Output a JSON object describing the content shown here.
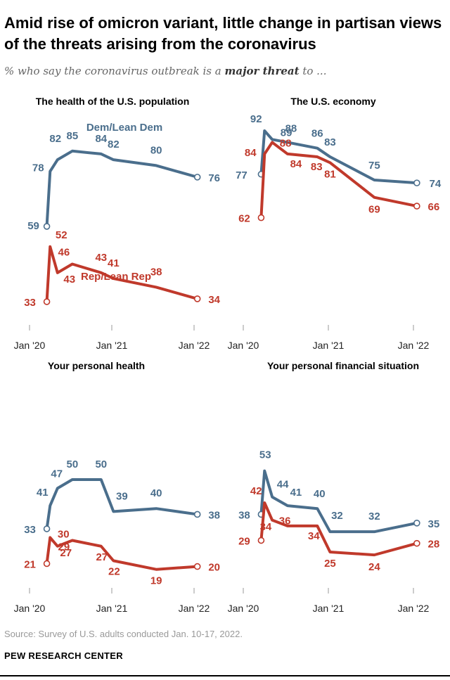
{
  "title": "Amid rise of omicron variant, little change in partisan views of the threats arising from the coronavirus",
  "subtitle_prefix": "% who say the coronavirus outbreak is a ",
  "subtitle_emphasis": "major threat",
  "subtitle_suffix": " to ...",
  "source": "Source: Survey of U.S. adults conducted Jan. 10-17, 2022.",
  "organization": "PEW RESEARCH CENTER",
  "colors": {
    "dem": "#4a6e8c",
    "rep": "#c0392b"
  },
  "chart_data": [
    {
      "type": "line",
      "title": "The health of the U.S. population",
      "x_tick_labels": [
        "Jan '20",
        "Jan '21",
        "Jan '22"
      ],
      "xlim": [
        "2020-01",
        "2022-01"
      ],
      "ylim": [
        0,
        100
      ],
      "series": [
        {
          "name": "Dem/Lean Dem",
          "x": [
            2020.21,
            2020.25,
            2020.34,
            2020.52,
            2020.87,
            2021.02,
            2021.54,
            2022.04
          ],
          "values": [
            59,
            78,
            82,
            85,
            84,
            82,
            80,
            76
          ],
          "labeled": [
            true,
            true,
            true,
            true,
            true,
            true,
            true,
            true
          ]
        },
        {
          "name": "Rep/Lean Rep",
          "x": [
            2020.21,
            2020.25,
            2020.34,
            2020.52,
            2020.87,
            2021.02,
            2021.54,
            2022.04
          ],
          "values": [
            33,
            52,
            43,
            46,
            43,
            41,
            38,
            34
          ],
          "labeled": [
            true,
            true,
            true,
            true,
            true,
            true,
            true,
            true
          ]
        }
      ]
    },
    {
      "type": "line",
      "title": "The U.S. economy",
      "x_tick_labels": [
        "Jan '20",
        "Jan '21",
        "Jan '22"
      ],
      "xlim": [
        "2020-01",
        "2022-01"
      ],
      "ylim": [
        0,
        100
      ],
      "series": [
        {
          "name": "Dem/Lean Dem",
          "x": [
            2020.21,
            2020.25,
            2020.34,
            2020.52,
            2020.87,
            2021.02,
            2021.54,
            2022.04
          ],
          "values": [
            77,
            92,
            89,
            88,
            86,
            83,
            75,
            74
          ],
          "labeled": [
            true,
            true,
            true,
            true,
            true,
            true,
            true,
            true
          ]
        },
        {
          "name": "Rep/Lean Rep",
          "x": [
            2020.21,
            2020.25,
            2020.34,
            2020.52,
            2020.87,
            2021.02,
            2021.54,
            2022.04
          ],
          "values": [
            62,
            84,
            88,
            84,
            83,
            81,
            69,
            66
          ],
          "labeled": [
            true,
            true,
            true,
            true,
            true,
            true,
            true,
            true
          ]
        }
      ]
    },
    {
      "type": "line",
      "title": "Your personal health",
      "x_tick_labels": [
        "Jan '20",
        "Jan '21",
        "Jan '22"
      ],
      "xlim": [
        "2020-01",
        "2022-01"
      ],
      "ylim": [
        0,
        100
      ],
      "series": [
        {
          "name": "Dem/Lean Dem",
          "x": [
            2020.21,
            2020.25,
            2020.34,
            2020.52,
            2020.87,
            2021.02,
            2021.54,
            2022.04
          ],
          "values": [
            33,
            41,
            47,
            50,
            50,
            39,
            40,
            38
          ],
          "labeled": [
            true,
            true,
            true,
            true,
            true,
            true,
            true,
            true
          ]
        },
        {
          "name": "Rep/Lean Rep",
          "x": [
            2020.21,
            2020.25,
            2020.34,
            2020.52,
            2020.87,
            2021.02,
            2021.54,
            2022.04
          ],
          "values": [
            21,
            30,
            27,
            29,
            27,
            22,
            19,
            20
          ],
          "labeled": [
            true,
            true,
            true,
            true,
            true,
            true,
            true,
            true
          ]
        }
      ]
    },
    {
      "type": "line",
      "title": "Your personal financial situation",
      "x_tick_labels": [
        "Jan '20",
        "Jan '21",
        "Jan '22"
      ],
      "xlim": [
        "2020-01",
        "2022-01"
      ],
      "ylim": [
        0,
        100
      ],
      "series": [
        {
          "name": "Dem/Lean Dem",
          "x": [
            2020.21,
            2020.25,
            2020.34,
            2020.52,
            2020.87,
            2021.02,
            2021.54,
            2022.04
          ],
          "values": [
            38,
            53,
            44,
            41,
            40,
            32,
            32,
            35
          ],
          "labeled": [
            true,
            true,
            true,
            true,
            true,
            true,
            true,
            true
          ]
        },
        {
          "name": "Rep/Lean Rep",
          "x": [
            2020.21,
            2020.25,
            2020.34,
            2020.52,
            2020.87,
            2021.02,
            2021.54,
            2022.04
          ],
          "values": [
            29,
            42,
            36,
            34,
            34,
            25,
            24,
            28
          ],
          "labeled": [
            true,
            true,
            true,
            true,
            true,
            true,
            true,
            true
          ]
        }
      ]
    }
  ]
}
